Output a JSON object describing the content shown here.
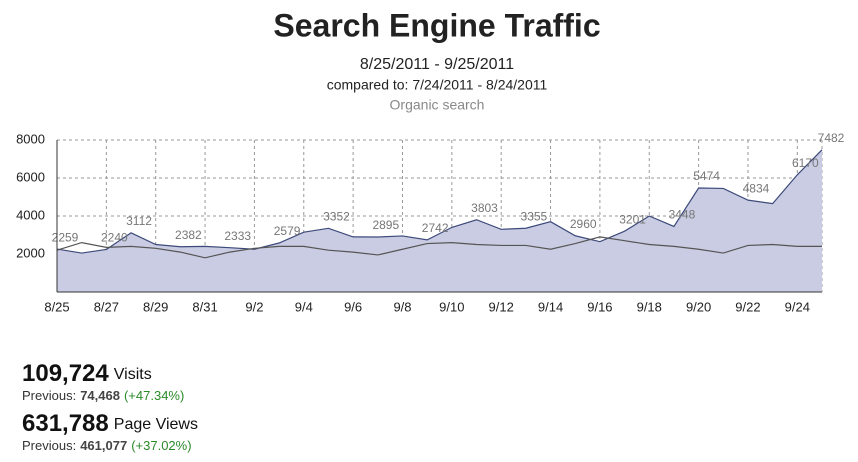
{
  "chart_data": {
    "type": "area",
    "title": "Search Engine Traffic",
    "subtitle": "8/25/2011 - 9/25/2011",
    "comparison": "compared to: 7/24/2011 - 8/24/2011",
    "segment": "Organic search",
    "categories": [
      "8/25",
      null,
      "8/27",
      null,
      "8/29",
      null,
      "8/31",
      null,
      "9/2",
      null,
      "9/4",
      null,
      "9/6",
      null,
      "9/8",
      null,
      "9/10",
      null,
      "9/12",
      null,
      "9/14",
      null,
      "9/16",
      null,
      "9/18",
      null,
      "9/20",
      null,
      "9/22",
      null,
      "9/24",
      null
    ],
    "series": [
      {
        "color": "#3d4a7a",
        "fill": "#c9cce2",
        "values": [
          2259,
          2050,
          2240,
          3112,
          2500,
          2382,
          2400,
          2333,
          2250,
          2579,
          3150,
          3352,
          2900,
          2895,
          2950,
          2742,
          3400,
          3803,
          3300,
          3355,
          3700,
          2960,
          2650,
          3201,
          4000,
          3448,
          5474,
          5450,
          4834,
          4650,
          6170,
          7482
        ],
        "labeled_points": [
          0,
          2,
          3,
          5,
          7,
          9,
          11,
          13,
          15,
          17,
          19,
          21,
          23,
          25,
          26,
          28,
          30,
          31
        ]
      },
      {
        "color": "#555555",
        "values": [
          2200,
          2600,
          2350,
          2400,
          2300,
          2100,
          1800,
          2100,
          2300,
          2400,
          2400,
          2200,
          2100,
          1950,
          2250,
          2550,
          2600,
          2500,
          2450,
          2450,
          2250,
          2550,
          2900,
          2700,
          2500,
          2400,
          2250,
          2050,
          2450,
          2500,
          2400,
          2400
        ]
      }
    ],
    "ylim": [
      0,
      8000
    ],
    "yticks": [
      2000,
      4000,
      6000,
      8000
    ],
    "grid": true
  },
  "stats": [
    {
      "value": "109,724",
      "label": "Visits",
      "previous_label": "Previous:",
      "previous": "74,468",
      "change": "(+47.34%)"
    },
    {
      "value": "631,788",
      "label": "Page Views",
      "previous_label": "Previous:",
      "previous": "461,077",
      "change": "(+37.02%)"
    }
  ]
}
